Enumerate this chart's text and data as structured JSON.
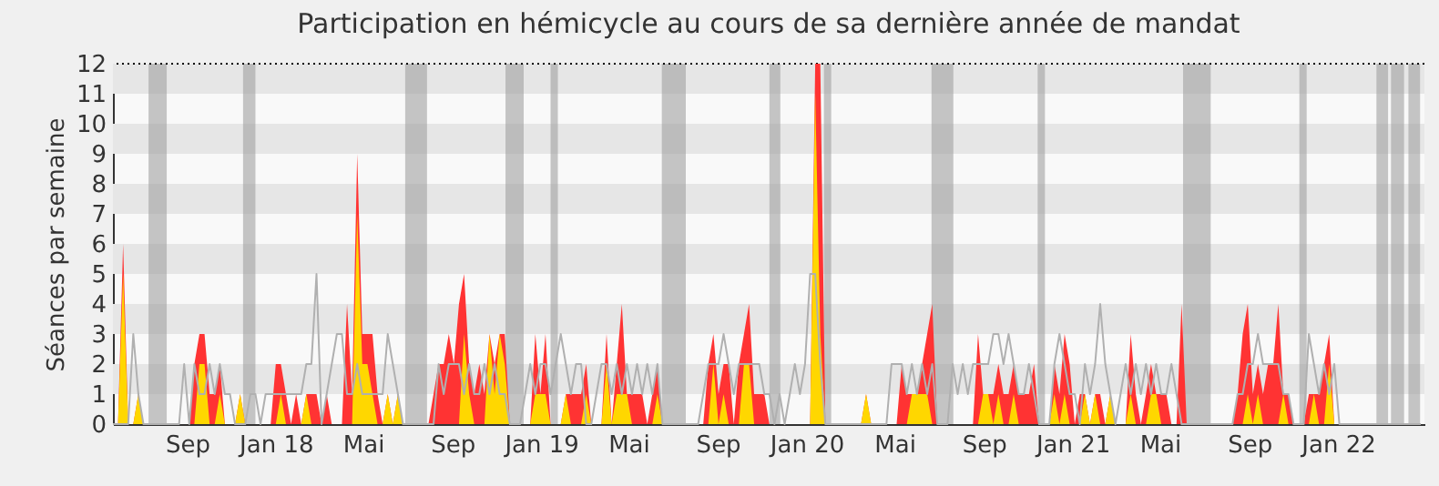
{
  "chart_data": {
    "type": "area",
    "title": "Participation en hémicycle au cours de sa dernière année de mandat",
    "ylabel": "Séances par semaine",
    "xlim": [
      "2017-05-22",
      "2022-04-30"
    ],
    "xticks": [
      {
        "value": "2017-09-01",
        "label": "Sep"
      },
      {
        "value": "2018-01-01",
        "label": "Jan 18"
      },
      {
        "value": "2018-05-01",
        "label": "Mai"
      },
      {
        "value": "2018-09-01",
        "label": "Sep"
      },
      {
        "value": "2019-01-01",
        "label": "Jan 19"
      },
      {
        "value": "2019-05-01",
        "label": "Mai"
      },
      {
        "value": "2019-09-01",
        "label": "Sep"
      },
      {
        "value": "2020-01-01",
        "label": "Jan 20"
      },
      {
        "value": "2020-05-01",
        "label": "Mai"
      },
      {
        "value": "2020-09-01",
        "label": "Sep"
      },
      {
        "value": "2021-01-01",
        "label": "Jan 21"
      },
      {
        "value": "2021-05-01",
        "label": "Mai"
      },
      {
        "value": "2021-09-01",
        "label": "Sep"
      },
      {
        "value": "2022-01-01",
        "label": "Jan 22"
      }
    ],
    "ylim": [
      0,
      12
    ],
    "yticks": [
      0,
      1,
      2,
      3,
      4,
      5,
      6,
      7,
      8,
      9,
      10,
      11,
      12
    ],
    "x": [
      "2017-05-22",
      "2017-05-29",
      "2017-06-05",
      "2017-06-12",
      "2017-06-19",
      "2017-06-26",
      "2017-07-03",
      "2017-07-10",
      "2017-07-17",
      "2017-07-24",
      "2017-07-31",
      "2017-08-07",
      "2017-08-14",
      "2017-08-21",
      "2017-08-28",
      "2017-09-04",
      "2017-09-11",
      "2017-09-18",
      "2017-09-25",
      "2017-10-02",
      "2017-10-09",
      "2017-10-16",
      "2017-10-23",
      "2017-10-30",
      "2017-11-06",
      "2017-11-13",
      "2017-11-20",
      "2017-11-27",
      "2017-12-04",
      "2017-12-11",
      "2017-12-18",
      "2017-12-25",
      "2018-01-01",
      "2018-01-08",
      "2018-01-15",
      "2018-01-22",
      "2018-01-29",
      "2018-02-05",
      "2018-02-12",
      "2018-02-19",
      "2018-02-26",
      "2018-03-05",
      "2018-03-12",
      "2018-03-19",
      "2018-03-26",
      "2018-04-02",
      "2018-04-09",
      "2018-04-16",
      "2018-04-23",
      "2018-04-30",
      "2018-05-07",
      "2018-05-14",
      "2018-05-21",
      "2018-05-28",
      "2018-06-04",
      "2018-06-11",
      "2018-06-18",
      "2018-06-25",
      "2018-07-02",
      "2018-07-09",
      "2018-07-16",
      "2018-07-23",
      "2018-07-30",
      "2018-08-06",
      "2018-08-13",
      "2018-08-20",
      "2018-08-27",
      "2018-09-03",
      "2018-09-10",
      "2018-09-17",
      "2018-09-24",
      "2018-10-01",
      "2018-10-08",
      "2018-10-15",
      "2018-10-22",
      "2018-10-29",
      "2018-11-05",
      "2018-11-12",
      "2018-11-19",
      "2018-11-26",
      "2018-12-03",
      "2018-12-10",
      "2018-12-17",
      "2018-12-24",
      "2018-12-31",
      "2019-01-07",
      "2019-01-14",
      "2019-01-21",
      "2019-01-28",
      "2019-02-04",
      "2019-02-11",
      "2019-02-18",
      "2019-02-25",
      "2019-03-04",
      "2019-03-11",
      "2019-03-18",
      "2019-03-25",
      "2019-04-01",
      "2019-04-08",
      "2019-04-15",
      "2019-04-22",
      "2019-04-29",
      "2019-05-06",
      "2019-05-13",
      "2019-05-20",
      "2019-05-27",
      "2019-06-03",
      "2019-06-10",
      "2019-06-17",
      "2019-06-24",
      "2019-07-01",
      "2019-07-08",
      "2019-07-15",
      "2019-07-22",
      "2019-07-29",
      "2019-08-05",
      "2019-08-12",
      "2019-08-19",
      "2019-08-26",
      "2019-09-02",
      "2019-09-09",
      "2019-09-16",
      "2019-09-23",
      "2019-09-30",
      "2019-10-07",
      "2019-10-14",
      "2019-10-21",
      "2019-10-28",
      "2019-11-04",
      "2019-11-11",
      "2019-11-18",
      "2019-11-25",
      "2019-12-02",
      "2019-12-09",
      "2019-12-16",
      "2019-12-23",
      "2019-12-30",
      "2020-01-06",
      "2020-01-13",
      "2020-01-20",
      "2020-01-27",
      "2020-02-03",
      "2020-02-10",
      "2020-02-17",
      "2020-02-24",
      "2020-03-02",
      "2020-03-09",
      "2020-03-16",
      "2020-03-23",
      "2020-03-30",
      "2020-04-06",
      "2020-04-13",
      "2020-04-20",
      "2020-04-27",
      "2020-05-04",
      "2020-05-11",
      "2020-05-18",
      "2020-05-25",
      "2020-06-01",
      "2020-06-08",
      "2020-06-15",
      "2020-06-22",
      "2020-06-29",
      "2020-07-06",
      "2020-07-13",
      "2020-07-20",
      "2020-07-27",
      "2020-08-03",
      "2020-08-10",
      "2020-08-17",
      "2020-08-24",
      "2020-08-31",
      "2020-09-07",
      "2020-09-14",
      "2020-09-21",
      "2020-09-28",
      "2020-10-05",
      "2020-10-12",
      "2020-10-19",
      "2020-10-26",
      "2020-11-02",
      "2020-11-09",
      "2020-11-16",
      "2020-11-23",
      "2020-11-30",
      "2020-12-07",
      "2020-12-14",
      "2020-12-21",
      "2020-12-28",
      "2021-01-04",
      "2021-01-11",
      "2021-01-18",
      "2021-01-25",
      "2021-02-01",
      "2021-02-08",
      "2021-02-15",
      "2021-02-22",
      "2021-03-01",
      "2021-03-08",
      "2021-03-15",
      "2021-03-22",
      "2021-03-29",
      "2021-04-05",
      "2021-04-12",
      "2021-04-19",
      "2021-04-26",
      "2021-05-03",
      "2021-05-10",
      "2021-05-17",
      "2021-05-24",
      "2021-05-31",
      "2021-06-07",
      "2021-06-14",
      "2021-06-21",
      "2021-06-28",
      "2021-07-05",
      "2021-07-12",
      "2021-07-19",
      "2021-07-26",
      "2021-08-02",
      "2021-08-09",
      "2021-08-16",
      "2021-08-23",
      "2021-08-30",
      "2021-09-06",
      "2021-09-13",
      "2021-09-20",
      "2021-09-27",
      "2021-10-04",
      "2021-10-11",
      "2021-10-18",
      "2021-10-25",
      "2021-11-01",
      "2021-11-08",
      "2021-11-15",
      "2021-11-22",
      "2021-11-29",
      "2021-12-06",
      "2021-12-13",
      "2021-12-20",
      "2021-12-27",
      "2022-01-03",
      "2022-01-10",
      "2022-01-17",
      "2022-01-24",
      "2022-01-31",
      "2022-02-07",
      "2022-02-14",
      "2022-02-21",
      "2022-02-28",
      "2022-03-07",
      "2022-03-14",
      "2022-03-21",
      "2022-03-28",
      "2022-04-04",
      "2022-04-11",
      "2022-04-18",
      "2022-04-25"
    ],
    "series": [
      {
        "type": "line",
        "color": "#b0b0b0",
        "values": [
          0,
          0,
          0,
          0,
          3,
          1,
          0,
          0,
          0,
          0,
          0,
          0,
          0,
          0,
          2,
          0,
          2,
          1,
          1,
          2,
          1,
          2,
          1,
          1,
          0,
          0,
          0,
          1,
          1,
          0,
          1,
          1,
          1,
          1,
          1,
          1,
          1,
          1,
          2,
          2,
          5,
          0,
          1,
          2,
          3,
          3,
          1,
          1,
          2,
          1,
          1,
          1,
          1,
          1,
          3,
          2,
          1,
          0,
          0,
          0,
          0,
          0,
          0,
          0,
          2,
          1,
          2,
          2,
          2,
          1,
          2,
          1,
          1,
          2,
          1,
          2,
          1,
          1,
          0,
          0,
          0,
          1,
          2,
          1,
          2,
          2,
          1,
          2,
          3,
          2,
          1,
          2,
          2,
          0,
          0,
          1,
          2,
          2,
          1,
          2,
          1,
          2,
          1,
          2,
          1,
          2,
          1,
          2,
          0,
          0,
          0,
          0,
          0,
          0,
          0,
          0,
          1,
          2,
          2,
          2,
          3,
          2,
          1,
          2,
          2,
          2,
          2,
          2,
          1,
          1,
          0,
          1,
          0,
          1,
          2,
          1,
          2,
          5,
          5,
          2,
          0,
          0,
          0,
          0,
          0,
          0,
          0,
          0,
          0,
          0,
          0,
          0,
          0,
          2,
          2,
          2,
          1,
          2,
          1,
          2,
          1,
          2,
          0,
          0,
          0,
          2,
          1,
          2,
          1,
          2,
          2,
          2,
          2,
          3,
          3,
          2,
          3,
          2,
          1,
          1,
          2,
          1,
          0,
          0,
          0,
          2,
          3,
          2,
          1,
          1,
          0,
          2,
          1,
          2,
          4,
          2,
          1,
          0,
          1,
          2,
          1,
          2,
          1,
          2,
          1,
          2,
          1,
          1,
          2,
          1,
          0,
          0,
          0,
          0,
          0,
          0,
          0,
          0,
          0,
          0,
          0,
          1,
          1,
          2,
          2,
          3,
          2,
          2,
          2,
          2,
          1,
          1,
          0,
          0,
          0,
          3,
          2,
          1,
          2,
          1,
          2,
          0,
          0,
          0,
          0,
          0,
          0,
          0,
          0,
          0,
          0,
          0,
          0,
          0,
          0,
          0,
          0,
          0
        ]
      },
      {
        "color": "#ff3333",
        "values": [
          0,
          0,
          6,
          0,
          0,
          1,
          0,
          0,
          0,
          0,
          0,
          0,
          0,
          0,
          0,
          0,
          2,
          3,
          3,
          1,
          1,
          2,
          0,
          0,
          0,
          1,
          0,
          0,
          0,
          0,
          0,
          0,
          2,
          2,
          1,
          0,
          1,
          0,
          1,
          1,
          1,
          0,
          1,
          0,
          0,
          0,
          4,
          1,
          9,
          3,
          3,
          3,
          1,
          0,
          1,
          0,
          1,
          0,
          0,
          0,
          0,
          0,
          0,
          1,
          2,
          2,
          3,
          2,
          4,
          5,
          2,
          1,
          2,
          1,
          3,
          2,
          3,
          3,
          0,
          0,
          0,
          0,
          0,
          3,
          1,
          3,
          0,
          0,
          0,
          1,
          1,
          1,
          1,
          2,
          0,
          0,
          0,
          3,
          0,
          2,
          4,
          1,
          1,
          1,
          1,
          0,
          1,
          2,
          0,
          0,
          0,
          0,
          0,
          0,
          0,
          0,
          0,
          2,
          3,
          1,
          2,
          2,
          0,
          2,
          3,
          4,
          1,
          1,
          1,
          0,
          0,
          0,
          0,
          0,
          0,
          0,
          0,
          0,
          12,
          12,
          0,
          0,
          0,
          0,
          0,
          0,
          0,
          0,
          1,
          0,
          0,
          0,
          0,
          0,
          0,
          2,
          1,
          1,
          1,
          2,
          3,
          4,
          0,
          0,
          0,
          0,
          0,
          0,
          0,
          0,
          3,
          1,
          1,
          1,
          2,
          1,
          1,
          2,
          1,
          1,
          1,
          2,
          0,
          0,
          0,
          2,
          1,
          3,
          2,
          0,
          1,
          1,
          0,
          1,
          1,
          0,
          1,
          0,
          0,
          0,
          3,
          1,
          0,
          1,
          2,
          1,
          1,
          1,
          0,
          0,
          4,
          0,
          0,
          0,
          0,
          0,
          0,
          0,
          0,
          0,
          0,
          1,
          3,
          4,
          1,
          2,
          1,
          2,
          2,
          4,
          1,
          1,
          0,
          0,
          0,
          1,
          1,
          1,
          2,
          3,
          0,
          0,
          0,
          0,
          0,
          0,
          0,
          0,
          0,
          0,
          0,
          0,
          0,
          0,
          0,
          0,
          0,
          0
        ]
      },
      {
        "color": "#ffd700",
        "values": [
          0,
          0,
          5,
          0,
          0,
          1,
          0,
          0,
          0,
          0,
          0,
          0,
          0,
          0,
          0,
          0,
          0,
          2,
          2,
          0,
          0,
          1,
          0,
          0,
          0,
          1,
          0,
          0,
          0,
          0,
          0,
          0,
          0,
          1,
          0,
          0,
          0,
          0,
          1,
          0,
          0,
          0,
          0,
          0,
          0,
          0,
          0,
          0,
          7,
          2,
          2,
          1,
          0,
          0,
          1,
          0,
          1,
          0,
          0,
          0,
          0,
          0,
          0,
          0,
          0,
          0,
          0,
          0,
          0,
          3,
          1,
          0,
          0,
          0,
          3,
          1,
          3,
          2,
          0,
          0,
          0,
          0,
          0,
          1,
          1,
          1,
          0,
          0,
          0,
          1,
          0,
          0,
          0,
          1,
          0,
          0,
          0,
          2,
          0,
          1,
          1,
          1,
          0,
          0,
          0,
          0,
          0,
          1,
          0,
          0,
          0,
          0,
          0,
          0,
          0,
          0,
          0,
          0,
          2,
          0,
          1,
          0,
          0,
          0,
          2,
          2,
          0,
          0,
          0,
          0,
          0,
          0,
          0,
          0,
          0,
          0,
          0,
          0,
          11,
          3,
          0,
          0,
          0,
          0,
          0,
          0,
          0,
          0,
          1,
          0,
          0,
          0,
          0,
          0,
          0,
          0,
          0,
          1,
          1,
          1,
          1,
          0,
          0,
          0,
          0,
          0,
          0,
          0,
          0,
          0,
          0,
          1,
          1,
          0,
          1,
          0,
          0,
          1,
          0,
          0,
          0,
          0,
          0,
          0,
          0,
          1,
          0,
          1,
          0,
          0,
          0,
          1,
          0,
          1,
          0,
          0,
          1,
          0,
          0,
          0,
          1,
          0,
          0,
          0,
          1,
          1,
          0,
          0,
          0,
          0,
          0,
          0,
          0,
          0,
          0,
          0,
          0,
          0,
          0,
          0,
          0,
          0,
          0,
          1,
          0,
          1,
          0,
          0,
          0,
          0,
          1,
          0,
          0,
          0,
          0,
          0,
          1,
          0,
          0,
          2,
          0,
          0,
          0,
          0,
          0,
          0,
          0,
          0,
          0,
          0,
          0,
          0,
          0,
          0,
          0,
          0,
          0,
          0
        ]
      }
    ],
    "bands": [
      {
        "axis": "y",
        "from": 1,
        "to": 2,
        "color": "#e6e6e6"
      },
      {
        "axis": "y",
        "from": 3,
        "to": 4,
        "color": "#e6e6e6"
      },
      {
        "axis": "y",
        "from": 5,
        "to": 6,
        "color": "#e6e6e6"
      },
      {
        "axis": "y",
        "from": 7,
        "to": 8,
        "color": "#e6e6e6"
      },
      {
        "axis": "y",
        "from": 9,
        "to": 10,
        "color": "#e6e6e6"
      },
      {
        "axis": "y",
        "from": 11,
        "to": 12,
        "color": "#e6e6e6"
      },
      {
        "axis": "x",
        "from": "2017-07-10",
        "to": "2017-08-04",
        "color": "#a0a0a0"
      },
      {
        "axis": "x",
        "from": "2017-11-17",
        "to": "2017-12-04",
        "color": "#a0a0a0"
      },
      {
        "axis": "x",
        "from": "2018-06-28",
        "to": "2018-07-28",
        "color": "#a0a0a0"
      },
      {
        "axis": "x",
        "from": "2018-11-13",
        "to": "2018-12-08",
        "color": "#a0a0a0"
      },
      {
        "axis": "x",
        "from": "2019-01-14",
        "to": "2019-01-24",
        "color": "#a0a0a0"
      },
      {
        "axis": "x",
        "from": "2019-06-16",
        "to": "2019-07-19",
        "color": "#a0a0a0"
      },
      {
        "axis": "x",
        "from": "2019-11-11",
        "to": "2019-11-26",
        "color": "#a0a0a0"
      },
      {
        "axis": "x",
        "from": "2020-01-25",
        "to": "2020-02-04",
        "color": "#a0a0a0"
      },
      {
        "axis": "x",
        "from": "2020-06-21",
        "to": "2020-07-21",
        "color": "#a0a0a0"
      },
      {
        "axis": "x",
        "from": "2020-11-14",
        "to": "2020-11-24",
        "color": "#a0a0a0"
      },
      {
        "axis": "x",
        "from": "2021-06-02",
        "to": "2021-07-10",
        "color": "#a0a0a0"
      },
      {
        "axis": "x",
        "from": "2021-11-09",
        "to": "2021-11-19",
        "color": "#a0a0a0"
      },
      {
        "axis": "x",
        "from": "2022-02-23",
        "to": "2022-03-11",
        "color": "#a0a0a0"
      },
      {
        "axis": "x",
        "from": "2022-03-15",
        "to": "2022-04-02",
        "color": "#a0a0a0"
      },
      {
        "axis": "x",
        "from": "2022-04-08",
        "to": "2022-04-24",
        "color": "#a0a0a0"
      }
    ],
    "ref_lines": [
      {
        "axis": "y",
        "value": 12,
        "color": "#000000",
        "line_style": "dotted"
      }
    ]
  }
}
